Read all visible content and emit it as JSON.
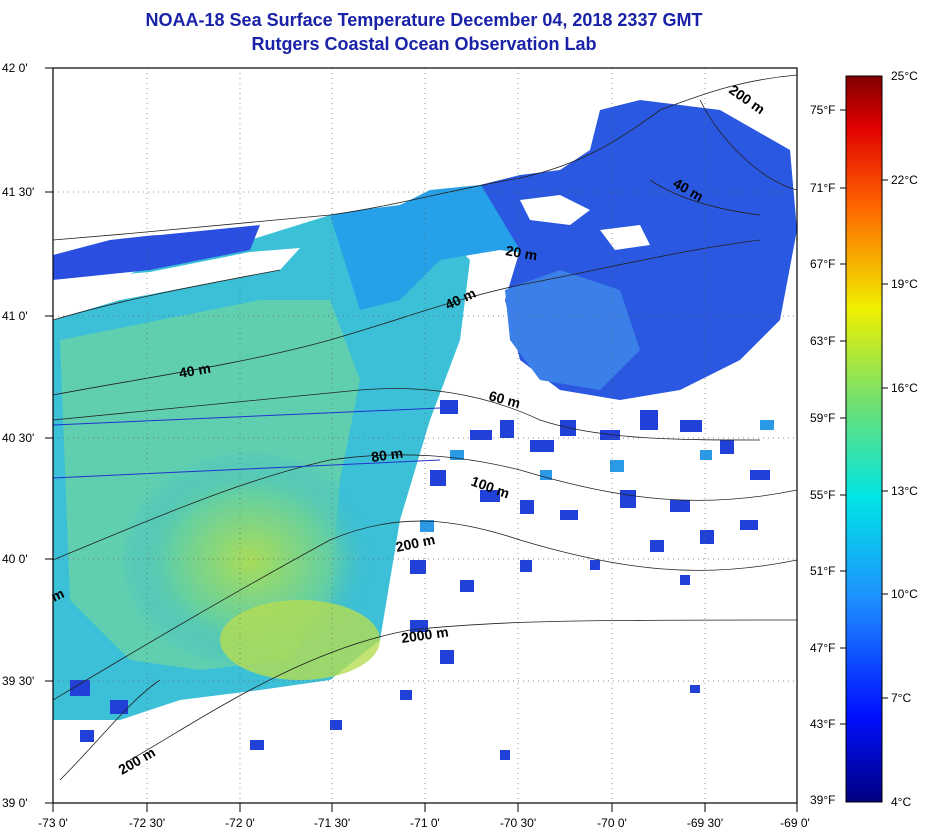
{
  "title": {
    "line1": "NOAA-18 Sea Surface Temperature December 04, 2018 2337 GMT",
    "line2": "Rutgers Coastal Ocean Observation Lab"
  },
  "lat_labels": [
    "42 0'",
    "41 30'",
    "41 0'",
    "40 30'",
    "40 0'",
    "39 30'",
    "39 0'"
  ],
  "lon_labels": [
    "-73 0'",
    "-72 30'",
    "-72 0'",
    "-71 30'",
    "-71 0'",
    "-70 30'",
    "-70 0'",
    "-69 30'",
    "-69 0'"
  ],
  "fahrenheit_labels": [
    "75°F",
    "71°F",
    "67°F",
    "63°F",
    "59°F",
    "55°F",
    "51°F",
    "47°F",
    "43°F",
    "39°F"
  ],
  "celsius_labels": [
    "25°C",
    "22°C",
    "19°C",
    "16°C",
    "13°C",
    "10°C",
    "7°C",
    "4°C"
  ],
  "isobath_labels": [
    "200 m",
    "40 m",
    "20 m",
    "40 m",
    "40 m",
    "60 m",
    "80 m",
    "100 m",
    "200 m",
    "2000 m",
    "m",
    "200 m"
  ],
  "colors": {
    "title": "#1a22a8",
    "land": "#ffffff",
    "cold_water": "#2244d8",
    "mid_water": "#22a8e0",
    "warm_water": "#8ed48a"
  }
}
